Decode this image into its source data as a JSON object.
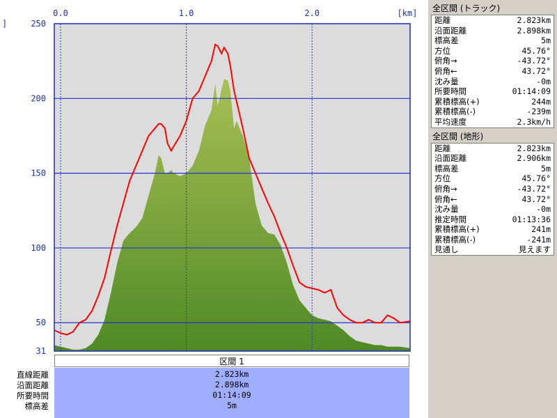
{
  "chart_data": {
    "type": "area",
    "x_unit_label": "[km]",
    "x_ticks": [
      "0.0",
      "1.0",
      "2.0"
    ],
    "x_tick_values": [
      0,
      1,
      2
    ],
    "y_ticks": [
      "250",
      "200",
      "150",
      "100",
      "50",
      "31"
    ],
    "y_tick_values": [
      250,
      200,
      150,
      100,
      50,
      31
    ],
    "left_edge_label": "]",
    "xlim": [
      -0.05,
      2.78
    ],
    "ylim": [
      31,
      250
    ],
    "grid": true,
    "series": [
      {
        "kind": "area",
        "color": "#6b9a2e",
        "x": [
          -0.05,
          0.0,
          0.05,
          0.1,
          0.15,
          0.2,
          0.25,
          0.3,
          0.35,
          0.4,
          0.45,
          0.5,
          0.55,
          0.6,
          0.65,
          0.7,
          0.75,
          0.78,
          0.8,
          0.83,
          0.85,
          0.88,
          0.9,
          0.95,
          1.0,
          1.05,
          1.1,
          1.15,
          1.2,
          1.23,
          1.25,
          1.28,
          1.3,
          1.33,
          1.35,
          1.38,
          1.4,
          1.45,
          1.5,
          1.55,
          1.6,
          1.65,
          1.7,
          1.75,
          1.8,
          1.85,
          1.9,
          1.95,
          2.0,
          2.05,
          2.1,
          2.15,
          2.2,
          2.25,
          2.3,
          2.35,
          2.4,
          2.45,
          2.5,
          2.55,
          2.6,
          2.65,
          2.7,
          2.78
        ],
        "y": [
          35,
          34,
          33,
          32,
          32,
          33,
          36,
          42,
          52,
          70,
          90,
          105,
          110,
          114,
          120,
          135,
          150,
          162,
          160,
          150,
          150,
          152,
          150,
          148,
          150,
          155,
          165,
          182,
          192,
          210,
          195,
          206,
          213,
          212,
          205,
          180,
          185,
          175,
          160,
          130,
          115,
          110,
          109,
          102,
          90,
          75,
          65,
          60,
          55,
          53,
          52,
          51,
          48,
          45,
          41,
          38,
          37,
          36,
          35,
          35,
          34,
          34,
          34,
          33
        ]
      },
      {
        "kind": "line",
        "color": "#ff0000",
        "x": [
          -0.05,
          0.0,
          0.05,
          0.1,
          0.15,
          0.2,
          0.25,
          0.3,
          0.35,
          0.4,
          0.45,
          0.5,
          0.55,
          0.6,
          0.65,
          0.7,
          0.75,
          0.78,
          0.8,
          0.83,
          0.85,
          0.88,
          0.9,
          0.95,
          1.0,
          1.05,
          1.1,
          1.15,
          1.2,
          1.23,
          1.25,
          1.28,
          1.3,
          1.33,
          1.35,
          1.38,
          1.4,
          1.45,
          1.5,
          1.55,
          1.6,
          1.65,
          1.7,
          1.75,
          1.8,
          1.85,
          1.9,
          1.95,
          2.0,
          2.05,
          2.1,
          2.15,
          2.2,
          2.25,
          2.3,
          2.35,
          2.4,
          2.45,
          2.5,
          2.55,
          2.6,
          2.65,
          2.7,
          2.78
        ],
        "y": [
          45,
          43,
          42,
          44,
          50,
          52,
          58,
          68,
          80,
          98,
          115,
          130,
          145,
          155,
          165,
          175,
          180,
          183,
          183,
          180,
          170,
          165,
          168,
          175,
          185,
          200,
          205,
          215,
          225,
          236,
          235,
          230,
          234,
          230,
          222,
          205,
          198,
          180,
          160,
          150,
          140,
          130,
          121,
          110,
          100,
          88,
          77,
          74,
          73,
          72,
          70,
          72,
          60,
          55,
          52,
          50,
          50,
          52,
          50,
          50,
          55,
          53,
          50,
          51
        ]
      }
    ]
  },
  "track_section": {
    "title": "全区間 (トラック)",
    "rows": [
      {
        "label": "距離",
        "value": "2.823km"
      },
      {
        "label": "沿面距離",
        "value": "2.898km"
      },
      {
        "label": "標高差",
        "value": "5m"
      },
      {
        "label": "方位",
        "value": "45.76°"
      },
      {
        "label": "俯角→",
        "value": "-43.72°"
      },
      {
        "label": "俯角←",
        "value": "43.72°"
      },
      {
        "label": "沈み量",
        "value": "-0m"
      },
      {
        "label": "所要時間",
        "value": "01:14:09"
      },
      {
        "label": "累積標高(+)",
        "value": "244m"
      },
      {
        "label": "累積標高(-)",
        "value": "-239m"
      },
      {
        "label": "平均速度",
        "value": "2.3km/h"
      }
    ]
  },
  "terrain_section": {
    "title": "全区間 (地形)",
    "rows": [
      {
        "label": "距離",
        "value": "2.823km"
      },
      {
        "label": "沿面距離",
        "value": "2.906km"
      },
      {
        "label": "標高差",
        "value": "5m"
      },
      {
        "label": "方位",
        "value": "45.76°"
      },
      {
        "label": "俯角→",
        "value": "-43.72°"
      },
      {
        "label": "俯角←",
        "value": "43.72°"
      },
      {
        "label": "沈み量",
        "value": "-0m"
      },
      {
        "label": "推定時間",
        "value": "01:13:36"
      },
      {
        "label": "累積標高(+)",
        "value": "241m"
      },
      {
        "label": "累積標高(-)",
        "value": "-241m"
      },
      {
        "label": "見通し",
        "value": "見えます"
      }
    ]
  },
  "segment": {
    "title": "区間 1",
    "labels": [
      "直線距離",
      "沿面距離",
      "所要時間",
      "標高差"
    ],
    "values": [
      "2.823km",
      "2.898km",
      "01:14:09",
      "5m"
    ]
  }
}
